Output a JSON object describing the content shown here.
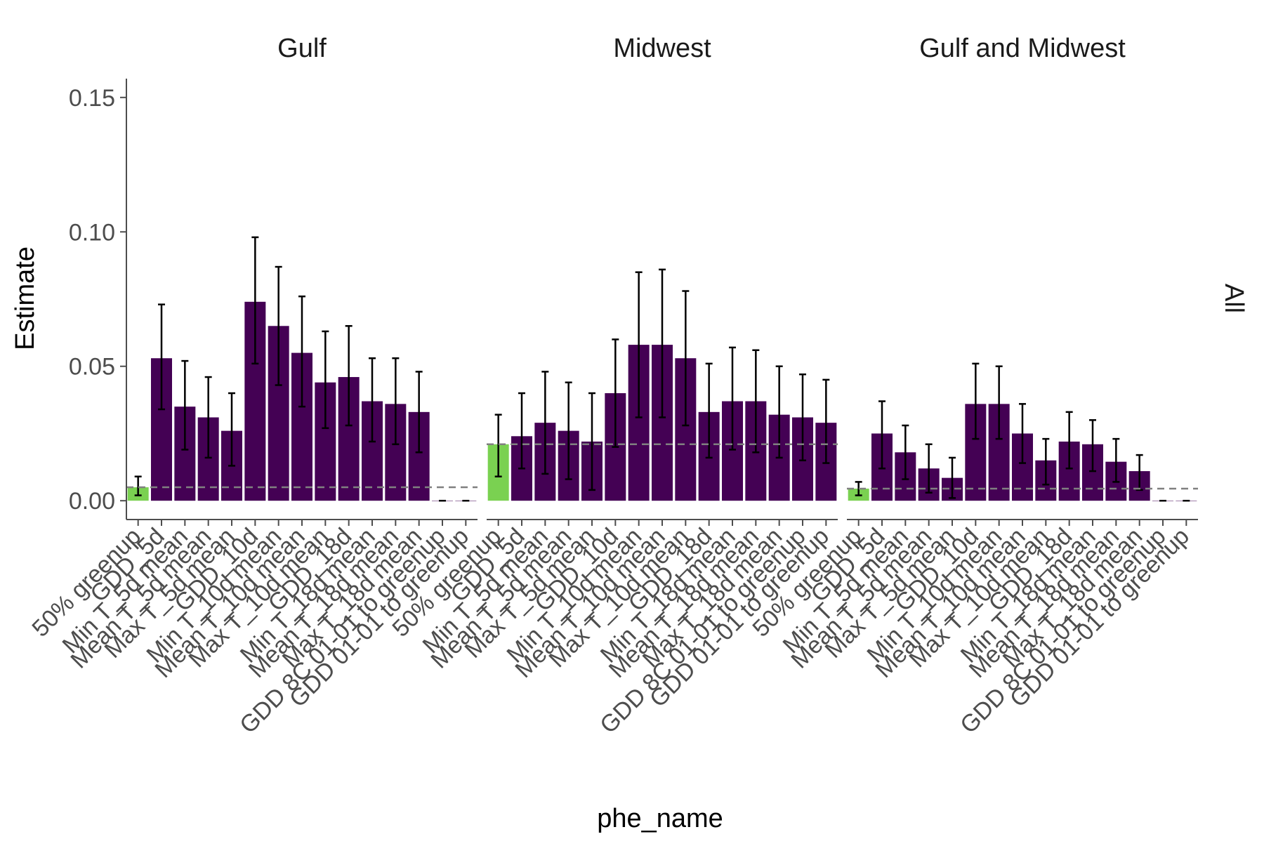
{
  "chart_data": {
    "type": "bar",
    "xlabel": "phe_name",
    "ylabel": "Estimate",
    "ylim": [
      -0.007,
      0.157
    ],
    "yticks": [
      0.0,
      0.05,
      0.1,
      0.15
    ],
    "ytick_labels": [
      "0.00",
      "0.05",
      "0.10",
      "0.15"
    ],
    "grid": false,
    "legend": "none",
    "row_facet_label": "All",
    "colors": {
      "highlight": "#7AD151",
      "bar": "#440154",
      "reference_line": "#808080",
      "error_bar": "#000000",
      "axis": "#4d4d4d"
    },
    "categories": [
      "50% greenup",
      "GDD_5d",
      "Min T_5d mean",
      "Mean T_5d mean",
      "Max T_5d mean",
      "GDD_10d",
      "Min T_10d mean",
      "Mean T_10d mean",
      "Max T_10d mean",
      "GDD_18d",
      "Min T_18d mean",
      "Mean T_18d mean",
      "Max T_18d mean",
      "GDD 8C 01-01 to greenup",
      "GDD 01-01 to greenup"
    ],
    "facets": [
      {
        "title": "Gulf",
        "reference_value": 0.005,
        "values": [
          0.005,
          0.053,
          0.035,
          0.031,
          0.026,
          0.074,
          0.065,
          0.055,
          0.044,
          0.046,
          0.037,
          0.036,
          0.033,
          0.0,
          0.0
        ],
        "error_low": [
          0.002,
          0.034,
          0.019,
          0.016,
          0.013,
          0.051,
          0.043,
          0.035,
          0.027,
          0.028,
          0.022,
          0.021,
          0.018,
          0.0,
          0.0
        ],
        "error_high": [
          0.009,
          0.073,
          0.052,
          0.046,
          0.04,
          0.098,
          0.087,
          0.076,
          0.063,
          0.065,
          0.053,
          0.053,
          0.048,
          0.0,
          0.0
        ]
      },
      {
        "title": "Midwest",
        "reference_value": 0.021,
        "values": [
          0.021,
          0.024,
          0.029,
          0.026,
          0.022,
          0.04,
          0.058,
          0.058,
          0.053,
          0.033,
          0.037,
          0.037,
          0.032,
          0.031,
          0.029
        ],
        "error_low": [
          0.009,
          0.012,
          0.01,
          0.008,
          0.004,
          0.02,
          0.031,
          0.031,
          0.028,
          0.016,
          0.019,
          0.018,
          0.016,
          0.015,
          0.014
        ],
        "error_high": [
          0.032,
          0.04,
          0.048,
          0.044,
          0.04,
          0.06,
          0.085,
          0.086,
          0.078,
          0.051,
          0.057,
          0.056,
          0.05,
          0.047,
          0.045
        ]
      },
      {
        "title": "Gulf and Midwest",
        "reference_value": 0.0045,
        "values": [
          0.0045,
          0.025,
          0.018,
          0.012,
          0.0085,
          0.036,
          0.036,
          0.025,
          0.015,
          0.022,
          0.021,
          0.0145,
          0.011,
          0.0,
          0.0
        ],
        "error_low": [
          0.002,
          0.012,
          0.008,
          0.003,
          0.001,
          0.023,
          0.023,
          0.014,
          0.006,
          0.012,
          0.011,
          0.007,
          0.004,
          0.0,
          0.0
        ],
        "error_high": [
          0.007,
          0.037,
          0.028,
          0.021,
          0.016,
          0.051,
          0.05,
          0.036,
          0.023,
          0.033,
          0.03,
          0.023,
          0.017,
          0.0,
          0.0
        ]
      }
    ]
  }
}
